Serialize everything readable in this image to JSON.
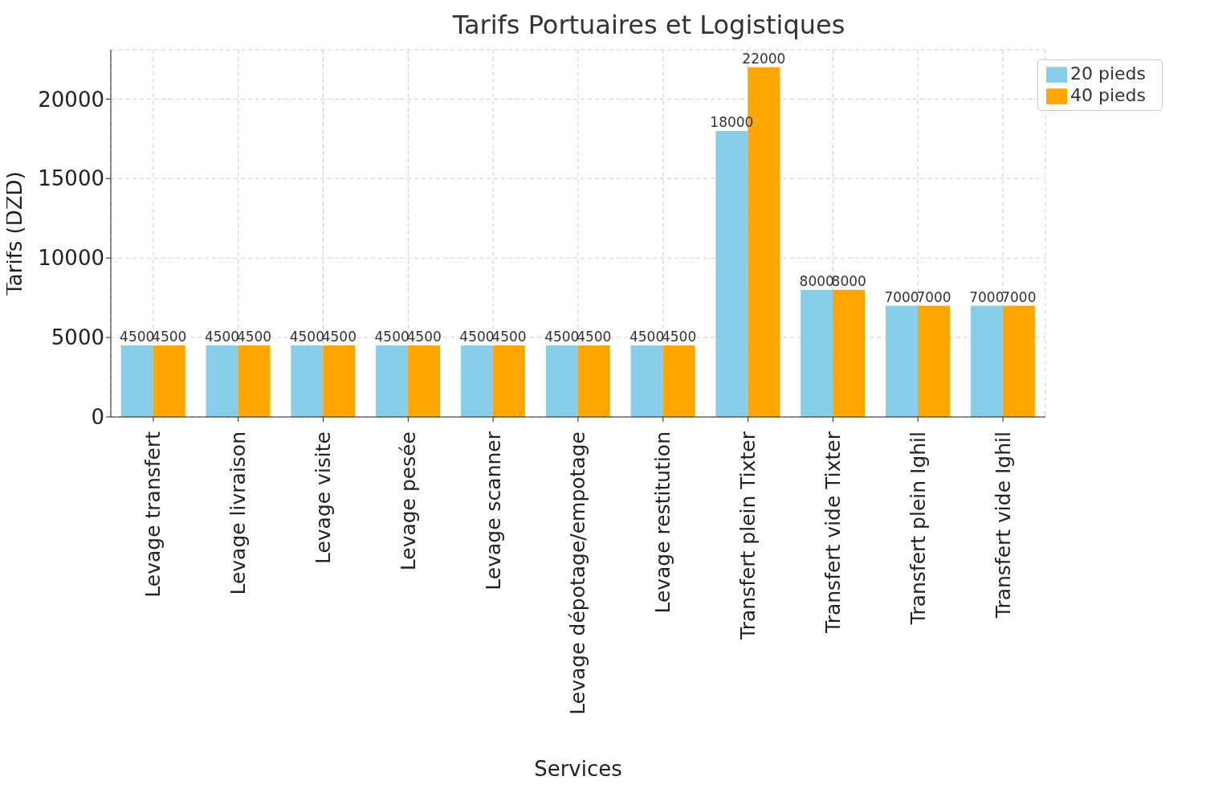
{
  "chart_data": {
    "type": "bar",
    "title": "Tarifs Portuaires et Logistiques",
    "xlabel": "Services",
    "ylabel": "Tarifs (DZD)",
    "categories": [
      "Levage transfert",
      "Levage livraison",
      "Levage visite",
      "Levage pesée",
      "Levage scanner",
      "Levage dépotage/empotage",
      "Levage restitution",
      "Transfert plein Tixter",
      "Transfert vide Tixter",
      "Transfert plein Ighil",
      "Transfert vide Ighil"
    ],
    "series": [
      {
        "name": "20 pieds",
        "color": "#87ceeb",
        "values": [
          4500,
          4500,
          4500,
          4500,
          4500,
          4500,
          4500,
          18000,
          8000,
          7000,
          7000
        ]
      },
      {
        "name": "40 pieds",
        "color": "#ffa500",
        "values": [
          4500,
          4500,
          4500,
          4500,
          4500,
          4500,
          4500,
          22000,
          8000,
          7000,
          7000
        ]
      }
    ],
    "ylim": [
      0,
      23100
    ],
    "yticks": [
      0,
      5000,
      10000,
      15000,
      20000
    ],
    "grid": true,
    "legend": "top right",
    "data_labels": true
  }
}
